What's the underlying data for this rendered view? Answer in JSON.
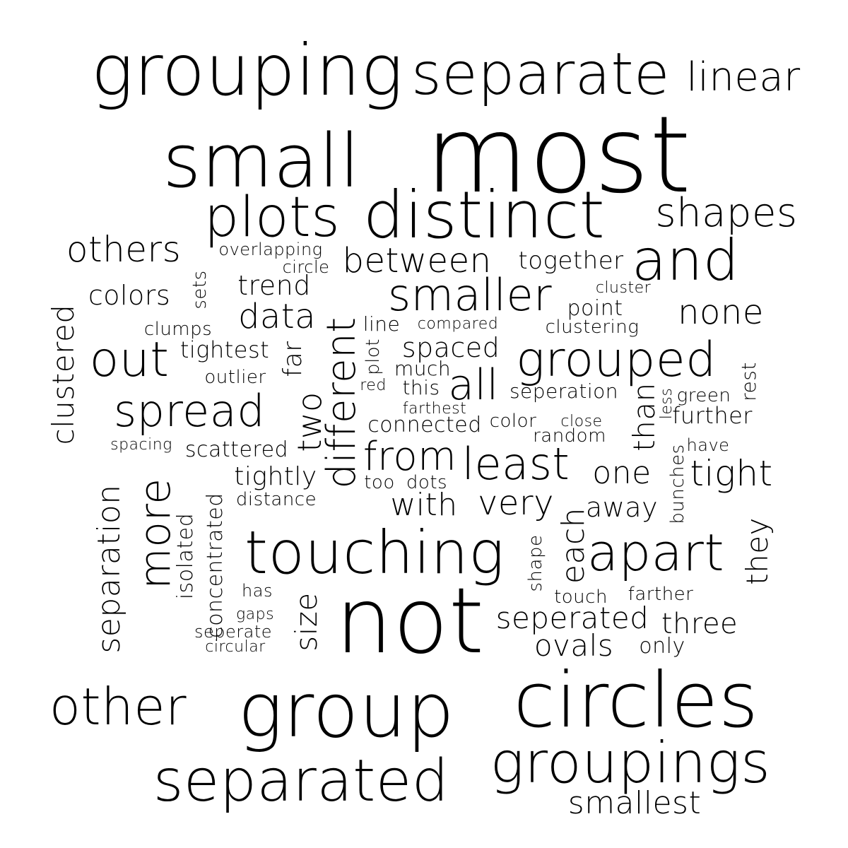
{
  "text_color": "#000000",
  "background_color": "#ffffff",
  "words": [
    {
      "text": "grouping",
      "orientation": "horizontal"
    },
    {
      "text": "separate",
      "orientation": "horizontal"
    },
    {
      "text": "linear",
      "orientation": "horizontal"
    },
    {
      "text": "small",
      "orientation": "horizontal"
    },
    {
      "text": "most",
      "orientation": "horizontal"
    },
    {
      "text": "plots",
      "orientation": "horizontal"
    },
    {
      "text": "distinct",
      "orientation": "horizontal"
    },
    {
      "text": "shapes",
      "orientation": "horizontal"
    },
    {
      "text": "others",
      "orientation": "horizontal"
    },
    {
      "text": "overlapping",
      "orientation": "horizontal"
    },
    {
      "text": "circle",
      "orientation": "horizontal"
    },
    {
      "text": "between",
      "orientation": "horizontal"
    },
    {
      "text": "together",
      "orientation": "horizontal"
    },
    {
      "text": "and",
      "orientation": "horizontal"
    },
    {
      "text": "colors",
      "orientation": "horizontal"
    },
    {
      "text": "sets",
      "orientation": "vertical"
    },
    {
      "text": "trend",
      "orientation": "horizontal"
    },
    {
      "text": "smaller",
      "orientation": "horizontal"
    },
    {
      "text": "cluster",
      "orientation": "horizontal"
    },
    {
      "text": "point",
      "orientation": "horizontal"
    },
    {
      "text": "none",
      "orientation": "horizontal"
    },
    {
      "text": "clustered",
      "orientation": "vertical"
    },
    {
      "text": "data",
      "orientation": "horizontal"
    },
    {
      "text": "clumps",
      "orientation": "horizontal"
    },
    {
      "text": "different",
      "orientation": "vertical"
    },
    {
      "text": "line",
      "orientation": "horizontal"
    },
    {
      "text": "compared",
      "orientation": "horizontal"
    },
    {
      "text": "clustering",
      "orientation": "horizontal"
    },
    {
      "text": "out",
      "orientation": "horizontal"
    },
    {
      "text": "tightest",
      "orientation": "horizontal"
    },
    {
      "text": "far",
      "orientation": "vertical"
    },
    {
      "text": "plot",
      "orientation": "vertical"
    },
    {
      "text": "spaced",
      "orientation": "horizontal"
    },
    {
      "text": "grouped",
      "orientation": "horizontal"
    },
    {
      "text": "rest",
      "orientation": "vertical"
    },
    {
      "text": "outlier",
      "orientation": "horizontal"
    },
    {
      "text": "much",
      "orientation": "horizontal"
    },
    {
      "text": "red",
      "orientation": "horizontal"
    },
    {
      "text": "this",
      "orientation": "horizontal"
    },
    {
      "text": "all",
      "orientation": "horizontal"
    },
    {
      "text": "seperation",
      "orientation": "horizontal"
    },
    {
      "text": "than",
      "orientation": "vertical"
    },
    {
      "text": "less",
      "orientation": "vertical"
    },
    {
      "text": "green",
      "orientation": "horizontal"
    },
    {
      "text": "spread",
      "orientation": "horizontal"
    },
    {
      "text": "two",
      "orientation": "vertical"
    },
    {
      "text": "farthest",
      "orientation": "horizontal"
    },
    {
      "text": "further",
      "orientation": "horizontal"
    },
    {
      "text": "connected",
      "orientation": "horizontal"
    },
    {
      "text": "color",
      "orientation": "horizontal"
    },
    {
      "text": "close",
      "orientation": "horizontal"
    },
    {
      "text": "random",
      "orientation": "horizontal"
    },
    {
      "text": "spacing",
      "orientation": "horizontal"
    },
    {
      "text": "scattered",
      "orientation": "horizontal"
    },
    {
      "text": "bunches",
      "orientation": "vertical"
    },
    {
      "text": "have",
      "orientation": "horizontal"
    },
    {
      "text": "from",
      "orientation": "horizontal"
    },
    {
      "text": "least",
      "orientation": "horizontal"
    },
    {
      "text": "one",
      "orientation": "horizontal"
    },
    {
      "text": "tight",
      "orientation": "horizontal"
    },
    {
      "text": "more",
      "orientation": "vertical"
    },
    {
      "text": "tightly",
      "orientation": "horizontal"
    },
    {
      "text": "too",
      "orientation": "horizontal"
    },
    {
      "text": "dots",
      "orientation": "horizontal"
    },
    {
      "text": "separation",
      "orientation": "vertical"
    },
    {
      "text": "distance",
      "orientation": "horizontal"
    },
    {
      "text": "with",
      "orientation": "horizontal"
    },
    {
      "text": "very",
      "orientation": "horizontal"
    },
    {
      "text": "away",
      "orientation": "horizontal"
    },
    {
      "text": "each",
      "orientation": "vertical"
    },
    {
      "text": "isolated",
      "orientation": "vertical"
    },
    {
      "text": "concentrated",
      "orientation": "vertical"
    },
    {
      "text": "touching",
      "orientation": "horizontal"
    },
    {
      "text": "apart",
      "orientation": "horizontal"
    },
    {
      "text": "they",
      "orientation": "vertical"
    },
    {
      "text": "shape",
      "orientation": "vertical"
    },
    {
      "text": "has",
      "orientation": "horizontal"
    },
    {
      "text": "touch",
      "orientation": "horizontal"
    },
    {
      "text": "farther",
      "orientation": "horizontal"
    },
    {
      "text": "gaps",
      "orientation": "horizontal"
    },
    {
      "text": "not",
      "orientation": "horizontal"
    },
    {
      "text": "seperated",
      "orientation": "horizontal"
    },
    {
      "text": "three",
      "orientation": "horizontal"
    },
    {
      "text": "seperate",
      "orientation": "horizontal"
    },
    {
      "text": "circular",
      "orientation": "horizontal"
    },
    {
      "text": "size",
      "orientation": "vertical"
    },
    {
      "text": "ovals",
      "orientation": "horizontal"
    },
    {
      "text": "only",
      "orientation": "horizontal"
    },
    {
      "text": "other",
      "orientation": "horizontal"
    },
    {
      "text": "group",
      "orientation": "horizontal"
    },
    {
      "text": "circles",
      "orientation": "horizontal"
    },
    {
      "text": "groupings",
      "orientation": "horizontal"
    },
    {
      "text": "separated",
      "orientation": "horizontal"
    },
    {
      "text": "smallest",
      "orientation": "horizontal"
    }
  ]
}
